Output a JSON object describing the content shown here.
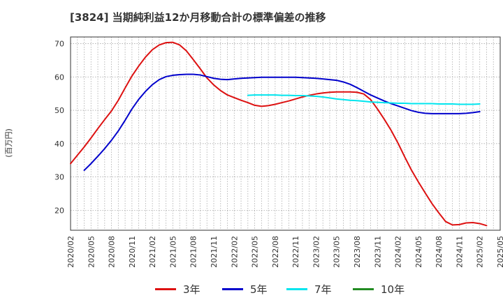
{
  "title": "[3824]  当期純利益12か月移動合計の標準偏差の推移",
  "y_unit": "(百万円)",
  "chart_data": {
    "type": "line",
    "title": "[3824]  当期純利益12か月移動合計の標準偏差の推移",
    "ylabel": "(百万円)",
    "xlabel": "",
    "ylim": [
      14,
      72
    ],
    "yticks": [
      20,
      30,
      40,
      50,
      60,
      70
    ],
    "x_tick_labels": [
      "2020/02",
      "2020/05",
      "2020/08",
      "2020/11",
      "2021/02",
      "2021/05",
      "2021/08",
      "2021/11",
      "2022/02",
      "2022/05",
      "2022/08",
      "2022/11",
      "2023/02",
      "2023/05",
      "2023/08",
      "2023/11",
      "2024/02",
      "2024/05",
      "2024/08",
      "2024/11",
      "2025/02",
      "2025/05"
    ],
    "grid": true,
    "legend_position": "bottom",
    "series": [
      {
        "name": "3年",
        "color": "#dd1111",
        "points": [
          [
            "2020/02",
            34.0
          ],
          [
            "2020/03",
            36.5
          ],
          [
            "2020/04",
            39.0
          ],
          [
            "2020/05",
            41.7
          ],
          [
            "2020/06",
            44.5
          ],
          [
            "2020/07",
            47.2
          ],
          [
            "2020/08",
            49.8
          ],
          [
            "2020/09",
            53.0
          ],
          [
            "2020/10",
            56.7
          ],
          [
            "2020/11",
            60.3
          ],
          [
            "2020/12",
            63.3
          ],
          [
            "2021/01",
            66.0
          ],
          [
            "2021/02",
            68.2
          ],
          [
            "2021/03",
            69.6
          ],
          [
            "2021/04",
            70.3
          ],
          [
            "2021/05",
            70.4
          ],
          [
            "2021/06",
            69.6
          ],
          [
            "2021/07",
            67.8
          ],
          [
            "2021/08",
            65.2
          ],
          [
            "2021/09",
            62.5
          ],
          [
            "2021/10",
            59.7
          ],
          [
            "2021/11",
            57.6
          ],
          [
            "2021/12",
            55.9
          ],
          [
            "2022/01",
            54.6
          ],
          [
            "2022/02",
            53.8
          ],
          [
            "2022/03",
            53.0
          ],
          [
            "2022/04",
            52.3
          ],
          [
            "2022/05",
            51.5
          ],
          [
            "2022/06",
            51.2
          ],
          [
            "2022/07",
            51.4
          ],
          [
            "2022/08",
            51.8
          ],
          [
            "2022/09",
            52.3
          ],
          [
            "2022/10",
            52.8
          ],
          [
            "2022/11",
            53.4
          ],
          [
            "2022/12",
            54.0
          ],
          [
            "2023/01",
            54.5
          ],
          [
            "2023/02",
            54.9
          ],
          [
            "2023/03",
            55.2
          ],
          [
            "2023/04",
            55.4
          ],
          [
            "2023/05",
            55.5
          ],
          [
            "2023/06",
            55.5
          ],
          [
            "2023/07",
            55.5
          ],
          [
            "2023/08",
            55.4
          ],
          [
            "2023/09",
            54.9
          ],
          [
            "2023/10",
            53.2
          ],
          [
            "2023/11",
            50.4
          ],
          [
            "2023/12",
            47.3
          ],
          [
            "2024/01",
            44.0
          ],
          [
            "2024/02",
            40.2
          ],
          [
            "2024/03",
            36.0
          ],
          [
            "2024/04",
            32.0
          ],
          [
            "2024/05",
            28.5
          ],
          [
            "2024/06",
            25.2
          ],
          [
            "2024/07",
            22.0
          ],
          [
            "2024/08",
            19.2
          ],
          [
            "2024/09",
            16.6
          ],
          [
            "2024/10",
            15.6
          ],
          [
            "2024/11",
            15.7
          ],
          [
            "2024/12",
            16.2
          ],
          [
            "2025/01",
            16.3
          ],
          [
            "2025/02",
            16.0
          ],
          [
            "2025/03",
            15.4
          ]
        ]
      },
      {
        "name": "5年",
        "color": "#0000cc",
        "points": [
          [
            "2020/04",
            32.0
          ],
          [
            "2020/05",
            34.0
          ],
          [
            "2020/06",
            36.2
          ],
          [
            "2020/07",
            38.5
          ],
          [
            "2020/08",
            41.0
          ],
          [
            "2020/09",
            43.8
          ],
          [
            "2020/10",
            47.0
          ],
          [
            "2020/11",
            50.4
          ],
          [
            "2020/12",
            53.3
          ],
          [
            "2021/01",
            55.7
          ],
          [
            "2021/02",
            57.7
          ],
          [
            "2021/03",
            59.2
          ],
          [
            "2021/04",
            60.1
          ],
          [
            "2021/05",
            60.5
          ],
          [
            "2021/06",
            60.7
          ],
          [
            "2021/07",
            60.8
          ],
          [
            "2021/08",
            60.8
          ],
          [
            "2021/09",
            60.6
          ],
          [
            "2021/10",
            60.1
          ],
          [
            "2021/11",
            59.6
          ],
          [
            "2021/12",
            59.3
          ],
          [
            "2022/01",
            59.2
          ],
          [
            "2022/02",
            59.4
          ],
          [
            "2022/03",
            59.6
          ],
          [
            "2022/04",
            59.7
          ],
          [
            "2022/05",
            59.8
          ],
          [
            "2022/06",
            59.9
          ],
          [
            "2022/07",
            59.9
          ],
          [
            "2022/08",
            59.9
          ],
          [
            "2022/09",
            59.9
          ],
          [
            "2022/10",
            59.9
          ],
          [
            "2022/11",
            59.9
          ],
          [
            "2022/12",
            59.8
          ],
          [
            "2023/01",
            59.7
          ],
          [
            "2023/02",
            59.6
          ],
          [
            "2023/03",
            59.4
          ],
          [
            "2023/04",
            59.2
          ],
          [
            "2023/05",
            59.0
          ],
          [
            "2023/06",
            58.5
          ],
          [
            "2023/07",
            57.8
          ],
          [
            "2023/08",
            56.8
          ],
          [
            "2023/09",
            55.7
          ],
          [
            "2023/10",
            54.6
          ],
          [
            "2023/11",
            53.7
          ],
          [
            "2023/12",
            52.8
          ],
          [
            "2024/01",
            52.0
          ],
          [
            "2024/02",
            51.3
          ],
          [
            "2024/03",
            50.6
          ],
          [
            "2024/04",
            49.9
          ],
          [
            "2024/05",
            49.4
          ],
          [
            "2024/06",
            49.1
          ],
          [
            "2024/07",
            49.0
          ],
          [
            "2024/08",
            49.0
          ],
          [
            "2024/09",
            49.0
          ],
          [
            "2024/10",
            49.0
          ],
          [
            "2024/11",
            49.0
          ],
          [
            "2024/12",
            49.1
          ],
          [
            "2025/01",
            49.3
          ],
          [
            "2025/02",
            49.6
          ]
        ]
      },
      {
        "name": "7年",
        "color": "#00e5ee",
        "points": [
          [
            "2022/04",
            54.5
          ],
          [
            "2022/05",
            54.6
          ],
          [
            "2022/06",
            54.6
          ],
          [
            "2022/07",
            54.6
          ],
          [
            "2022/08",
            54.6
          ],
          [
            "2022/09",
            54.5
          ],
          [
            "2022/10",
            54.5
          ],
          [
            "2022/11",
            54.4
          ],
          [
            "2022/12",
            54.4
          ],
          [
            "2023/01",
            54.3
          ],
          [
            "2023/02",
            54.2
          ],
          [
            "2023/03",
            54.0
          ],
          [
            "2023/04",
            53.7
          ],
          [
            "2023/05",
            53.4
          ],
          [
            "2023/06",
            53.2
          ],
          [
            "2023/07",
            53.0
          ],
          [
            "2023/08",
            52.9
          ],
          [
            "2023/09",
            52.7
          ],
          [
            "2023/10",
            52.5
          ],
          [
            "2023/11",
            52.4
          ],
          [
            "2023/12",
            52.3
          ],
          [
            "2024/01",
            52.2
          ],
          [
            "2024/02",
            52.1
          ],
          [
            "2024/03",
            52.1
          ],
          [
            "2024/04",
            52.0
          ],
          [
            "2024/05",
            52.0
          ],
          [
            "2024/06",
            52.0
          ],
          [
            "2024/07",
            52.0
          ],
          [
            "2024/08",
            51.9
          ],
          [
            "2024/09",
            51.9
          ],
          [
            "2024/10",
            51.9
          ],
          [
            "2024/11",
            51.8
          ],
          [
            "2024/12",
            51.8
          ],
          [
            "2025/01",
            51.8
          ],
          [
            "2025/02",
            51.9
          ]
        ]
      },
      {
        "name": "10年",
        "color": "#228b22",
        "points": []
      }
    ]
  }
}
